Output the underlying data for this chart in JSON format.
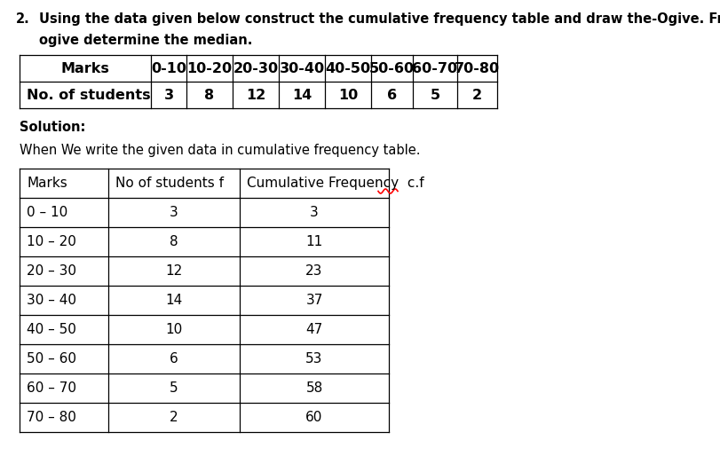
{
  "title_number": "2.",
  "title_text": "Using the data given below construct the cumulative frequency table and draw the-Ogive. From the",
  "title_text2": "ogive determine the median.",
  "solution_label": "Solution:",
  "intro_text": "When We write the given data in cumulative frequency table.",
  "table1": {
    "headers": [
      "Marks",
      "0-10",
      "10-20",
      "20-30",
      "30-40",
      "40-50",
      "50-60",
      "60-70",
      "70-80"
    ],
    "row": [
      "No. of students",
      "3",
      "8",
      "12",
      "14",
      "10",
      "6",
      "5",
      "2"
    ]
  },
  "table2": {
    "col_headers": [
      "Marks",
      "No of students f",
      "Cumulative Frequency  c.f"
    ],
    "rows": [
      [
        "0 – 10",
        "3",
        "3"
      ],
      [
        "10 – 20",
        "8",
        "11"
      ],
      [
        "20 – 30",
        "12",
        "23"
      ],
      [
        "30 – 40",
        "14",
        "37"
      ],
      [
        "40 – 50",
        "10",
        "47"
      ],
      [
        "50 – 60",
        "6",
        "53"
      ],
      [
        "60 – 70",
        "5",
        "58"
      ],
      [
        "70 – 80",
        "2",
        "60"
      ]
    ]
  },
  "bg_color": "#ffffff",
  "text_color": "#000000",
  "font_size_title": 10.5,
  "font_size_body": 10.5,
  "font_size_table1": 11.5,
  "font_size_table2": 11.0
}
